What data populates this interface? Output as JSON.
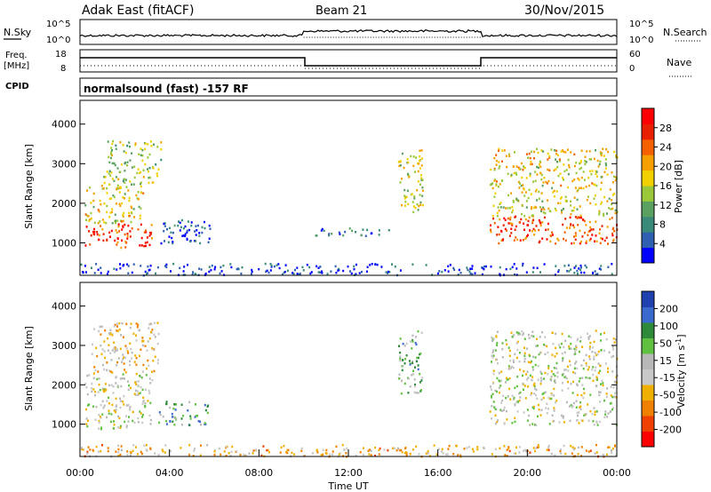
{
  "header": {
    "station": "Adak East (fitACF)",
    "beam": "Beam 21",
    "date": "30/Nov/2015"
  },
  "strip1": {
    "left_label": "N.Sky",
    "left_ticks": [
      "10^5",
      "10^0"
    ],
    "right_label": "N.Search",
    "right_ticks": [
      "10^5",
      "10^0"
    ]
  },
  "strip2": {
    "left_label_line1": "Freq.",
    "left_label_line2": "[MHz]",
    "left_ticks": [
      "18",
      "8"
    ],
    "right_label": "Nave",
    "right_ticks": [
      "60",
      "0"
    ]
  },
  "strip3": {
    "left_label": "CPID",
    "program": "normalsound (fast) -157 RF"
  },
  "colors": {
    "power_scale": [
      "#0000ff",
      "#2e5fb0",
      "#3a8a7a",
      "#5aa060",
      "#9ac83a",
      "#f0d000",
      "#f5a000",
      "#f56000",
      "#e82000",
      "#ff0000"
    ],
    "velocity_scale": [
      "#2040b0",
      "#3a6acd",
      "#2e8a3a",
      "#60c040",
      "#b8b8b8",
      "#c8c8c8",
      "#f0b000",
      "#f08000",
      "#f04000",
      "#ff0000"
    ],
    "ground_scatter": "#b8b8b8"
  },
  "chart_data": [
    {
      "type": "heatmap",
      "name": "power",
      "ylabel": "Slant Range [km]",
      "xlim": [
        0,
        24
      ],
      "ylim": [
        180,
        4600
      ],
      "yticks": [
        1000,
        2000,
        3000,
        4000
      ],
      "colorbar": {
        "label": "Power [dB]",
        "range": [
          0,
          30
        ],
        "ticks": [
          "4",
          "8",
          "12",
          "16",
          "20",
          "24",
          "28"
        ]
      },
      "regions": [
        {
          "t0": 0.2,
          "t1": 3.2,
          "r0": 900,
          "r1": 1500,
          "level": 0.85
        },
        {
          "t0": 0.2,
          "t1": 2.8,
          "r0": 1500,
          "r1": 2500,
          "level": 0.55
        },
        {
          "t0": 1.0,
          "t1": 3.6,
          "r0": 2500,
          "r1": 3600,
          "level": 0.45
        },
        {
          "t0": 3.5,
          "t1": 5.8,
          "r0": 1000,
          "r1": 1600,
          "level": 0.15
        },
        {
          "t0": 10.5,
          "t1": 13.8,
          "r0": 1200,
          "r1": 1400,
          "level": 0.18
        },
        {
          "t0": 14.2,
          "t1": 15.3,
          "r0": 1800,
          "r1": 3400,
          "level": 0.5
        },
        {
          "t0": 18.3,
          "t1": 24.0,
          "r0": 1000,
          "r1": 1700,
          "level": 0.8
        },
        {
          "t0": 18.3,
          "t1": 24.0,
          "r0": 1700,
          "r1": 3400,
          "level": 0.55
        },
        {
          "t0": 0.0,
          "t1": 24.0,
          "r0": 200,
          "r1": 500,
          "level": 0.1
        }
      ]
    },
    {
      "type": "heatmap",
      "name": "velocity",
      "ylabel": "Slant Range [km]",
      "xlabel": "Time UT",
      "xlim": [
        0,
        24
      ],
      "ylim": [
        180,
        4600
      ],
      "yticks": [
        1000,
        2000,
        3000,
        4000
      ],
      "xticks": [
        "00:00",
        "04:00",
        "08:00",
        "12:00",
        "16:00",
        "20:00",
        "00:00"
      ],
      "colorbar": {
        "label": "Velocity [m s^-1]",
        "range": [
          -250,
          250
        ],
        "ticks": [
          "200",
          "100",
          "50",
          "15",
          "-15",
          "-50",
          "-100",
          "-200"
        ]
      },
      "regions": [
        {
          "t0": 0.2,
          "t1": 3.2,
          "r0": 900,
          "r1": 2300,
          "level": 0.5
        },
        {
          "t0": 0.5,
          "t1": 3.5,
          "r0": 2300,
          "r1": 3600,
          "level": 0.6
        },
        {
          "t0": 3.5,
          "t1": 5.8,
          "r0": 1000,
          "r1": 1600,
          "level": 0.3
        },
        {
          "t0": 14.2,
          "t1": 15.3,
          "r0": 1800,
          "r1": 3400,
          "level": 0.35
        },
        {
          "t0": 18.3,
          "t1": 24.0,
          "r0": 1000,
          "r1": 3400,
          "level": 0.5
        },
        {
          "t0": 0.0,
          "t1": 24.0,
          "r0": 200,
          "r1": 500,
          "level": 0.65
        }
      ]
    }
  ]
}
